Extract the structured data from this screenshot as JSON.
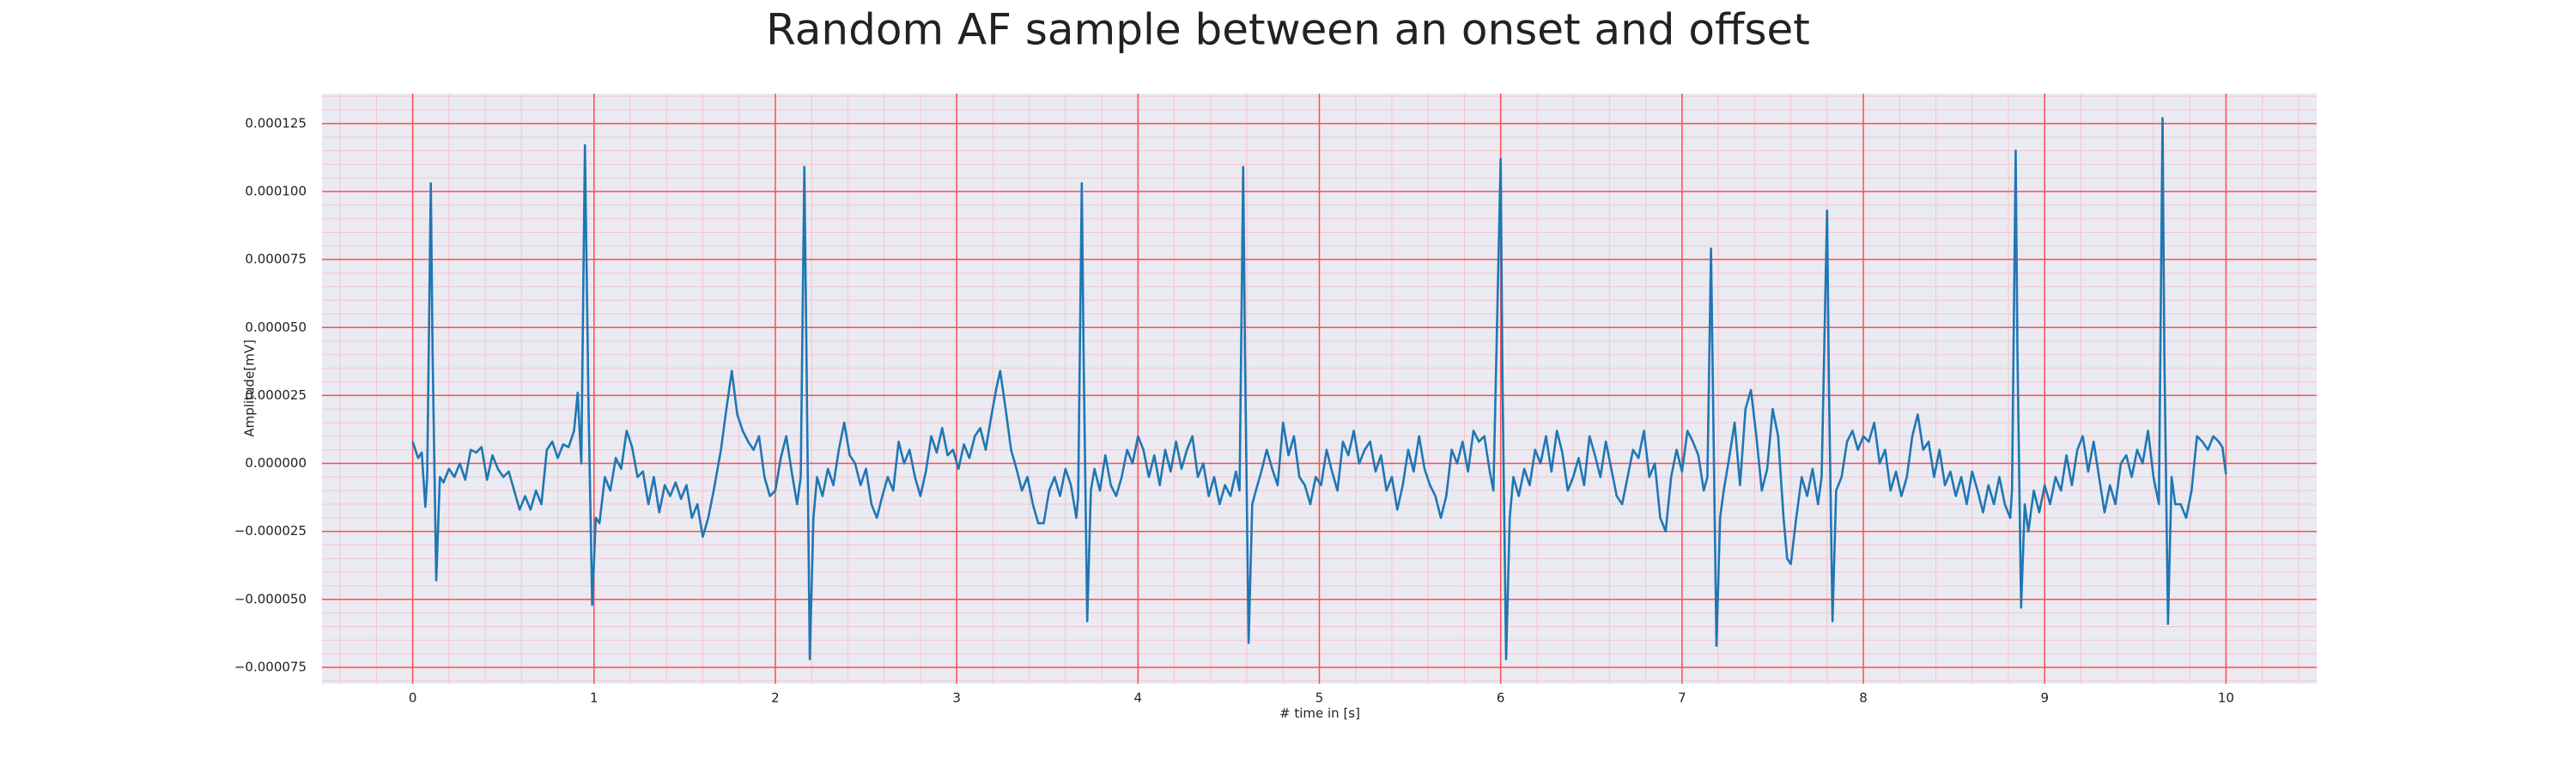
{
  "chart_data": {
    "type": "line",
    "title": "Random AF sample between an onset and offset",
    "xlabel": "# time in [s]",
    "ylabel": "Amplitude[mV]",
    "xlim": [
      -0.5,
      10.5
    ],
    "ylim": [
      -8.1e-05,
      0.000136
    ],
    "xticks": [
      0,
      1,
      2,
      3,
      4,
      5,
      6,
      7,
      8,
      9,
      10
    ],
    "yticks": [
      {
        "value": -7.5e-05,
        "label": "−0.000075"
      },
      {
        "value": -5e-05,
        "label": "−0.000050"
      },
      {
        "value": -2.5e-05,
        "label": "−0.000025"
      },
      {
        "value": 0,
        "label": "0.000000"
      },
      {
        "value": 2.5e-05,
        "label": "0.000025"
      },
      {
        "value": 5e-05,
        "label": "0.000050"
      },
      {
        "value": 7.5e-05,
        "label": "0.000075"
      },
      {
        "value": 0.0001,
        "label": "0.000100"
      },
      {
        "value": 0.000125,
        "label": "0.000125"
      }
    ],
    "grid": true,
    "minor_grid": true,
    "background": "#eaeaf2",
    "grid_color": "#ff4d4d",
    "minor_grid_color": "#f7c4cc",
    "x": [
      0.0,
      0.03,
      0.05,
      0.07,
      0.08,
      0.1,
      0.11,
      0.13,
      0.15,
      0.17,
      0.2,
      0.23,
      0.26,
      0.29,
      0.32,
      0.35,
      0.38,
      0.41,
      0.44,
      0.47,
      0.5,
      0.53,
      0.56,
      0.59,
      0.62,
      0.65,
      0.68,
      0.71,
      0.74,
      0.77,
      0.8,
      0.83,
      0.86,
      0.89,
      0.91,
      0.93,
      0.95,
      0.97,
      0.99,
      1.01,
      1.03,
      1.06,
      1.09,
      1.12,
      1.15,
      1.18,
      1.21,
      1.24,
      1.27,
      1.3,
      1.33,
      1.36,
      1.39,
      1.42,
      1.45,
      1.48,
      1.51,
      1.54,
      1.57,
      1.6,
      1.63,
      1.66,
      1.7,
      1.73,
      1.76,
      1.79,
      1.82,
      1.85,
      1.88,
      1.91,
      1.94,
      1.97,
      2.0,
      2.03,
      2.06,
      2.09,
      2.12,
      2.14,
      2.16,
      2.17,
      2.19,
      2.21,
      2.23,
      2.26,
      2.29,
      2.32,
      2.35,
      2.38,
      2.41,
      2.44,
      2.47,
      2.5,
      2.53,
      2.56,
      2.59,
      2.62,
      2.65,
      2.68,
      2.71,
      2.74,
      2.77,
      2.8,
      2.83,
      2.86,
      2.89,
      2.92,
      2.95,
      2.98,
      3.01,
      3.04,
      3.07,
      3.1,
      3.13,
      3.16,
      3.19,
      3.22,
      3.24,
      3.27,
      3.3,
      3.33,
      3.36,
      3.39,
      3.42,
      3.45,
      3.48,
      3.51,
      3.54,
      3.57,
      3.6,
      3.63,
      3.66,
      3.67,
      3.69,
      3.7,
      3.72,
      3.74,
      3.76,
      3.79,
      3.82,
      3.85,
      3.88,
      3.91,
      3.94,
      3.97,
      4.0,
      4.03,
      4.06,
      4.09,
      4.12,
      4.15,
      4.18,
      4.21,
      4.24,
      4.27,
      4.3,
      4.33,
      4.36,
      4.39,
      4.42,
      4.45,
      4.48,
      4.51,
      4.54,
      4.56,
      4.58,
      4.59,
      4.61,
      4.63,
      4.65,
      4.68,
      4.71,
      4.74,
      4.77,
      4.8,
      4.83,
      4.86,
      4.89,
      4.92,
      4.95,
      4.98,
      5.01,
      5.04,
      5.07,
      5.1,
      5.13,
      5.16,
      5.19,
      5.22,
      5.25,
      5.28,
      5.31,
      5.34,
      5.37,
      5.4,
      5.43,
      5.46,
      5.49,
      5.52,
      5.55,
      5.58,
      5.61,
      5.64,
      5.67,
      5.7,
      5.73,
      5.76,
      5.79,
      5.82,
      5.85,
      5.88,
      5.91,
      5.94,
      5.96,
      6.0,
      6.01,
      6.03,
      6.05,
      6.07,
      6.1,
      6.13,
      6.16,
      6.19,
      6.22,
      6.25,
      6.28,
      6.31,
      6.34,
      6.37,
      6.4,
      6.43,
      6.46,
      6.49,
      6.52,
      6.55,
      6.58,
      6.61,
      6.64,
      6.67,
      6.7,
      6.73,
      6.76,
      6.79,
      6.82,
      6.85,
      6.88,
      6.91,
      6.94,
      6.97,
      7.0,
      7.03,
      7.06,
      7.09,
      7.12,
      7.14,
      7.16,
      7.17,
      7.19,
      7.21,
      7.23,
      7.26,
      7.29,
      7.32,
      7.35,
      7.38,
      7.41,
      7.44,
      7.47,
      7.5,
      7.53,
      7.56,
      7.58,
      7.6,
      7.63,
      7.66,
      7.69,
      7.72,
      7.75,
      7.77,
      7.8,
      7.81,
      7.83,
      7.85,
      7.88,
      7.91,
      7.94,
      7.97,
      8.0,
      8.03,
      8.06,
      8.09,
      8.12,
      8.15,
      8.18,
      8.21,
      8.24,
      8.27,
      8.3,
      8.33,
      8.36,
      8.39,
      8.42,
      8.45,
      8.48,
      8.51,
      8.54,
      8.57,
      8.6,
      8.63,
      8.66,
      8.69,
      8.72,
      8.75,
      8.78,
      8.81,
      8.82,
      8.84,
      8.85,
      8.87,
      8.89,
      8.91,
      8.94,
      8.97,
      9.0,
      9.03,
      9.06,
      9.09,
      9.12,
      9.15,
      9.18,
      9.21,
      9.24,
      9.27,
      9.3,
      9.33,
      9.36,
      9.39,
      9.42,
      9.45,
      9.48,
      9.51,
      9.54,
      9.57,
      9.6,
      9.63,
      9.65,
      9.66,
      9.68,
      9.7,
      9.72,
      9.75,
      9.78,
      9.81,
      9.84,
      9.87,
      9.9,
      9.93,
      9.96,
      9.98,
      10.0
    ],
    "series": [
      {
        "color": "#1f77b4",
        "values": [
          8e-06,
          2e-06,
          4e-06,
          -1.6e-05,
          -5e-06,
          0.000103,
          4e-05,
          -4.3e-05,
          -5e-06,
          -7e-06,
          -2e-06,
          -5e-06,
          0,
          -6e-06,
          5e-06,
          4e-06,
          6e-06,
          -6e-06,
          3e-06,
          -2e-06,
          -5e-06,
          -3e-06,
          -1e-05,
          -1.7e-05,
          -1.2e-05,
          -1.7e-05,
          -1e-05,
          -1.5e-05,
          5e-06,
          8e-06,
          2e-06,
          7e-06,
          6e-06,
          1.2e-05,
          2.6e-05,
          0,
          0.000117,
          2e-05,
          -5.2e-05,
          -2e-05,
          -2.2e-05,
          -5e-06,
          -1e-05,
          2e-06,
          -2e-06,
          1.2e-05,
          6e-06,
          -5e-06,
          -3e-06,
          -1.5e-05,
          -5e-06,
          -1.8e-05,
          -8e-06,
          -1.2e-05,
          -7e-06,
          -1.3e-05,
          -8e-06,
          -2e-05,
          -1.5e-05,
          -2.7e-05,
          -2e-05,
          -1e-05,
          5e-06,
          2e-05,
          3.4e-05,
          1.8e-05,
          1.2e-05,
          8e-06,
          5e-06,
          1e-05,
          -5e-06,
          -1.2e-05,
          -1e-05,
          2e-06,
          1e-05,
          -3e-06,
          -1.5e-05,
          -5e-06,
          0.000109,
          5e-05,
          -7.2e-05,
          -2e-05,
          -5e-06,
          -1.2e-05,
          -2e-06,
          -8e-06,
          5e-06,
          1.5e-05,
          3e-06,
          0,
          -8e-06,
          -2e-06,
          -1.5e-05,
          -2e-05,
          -1.2e-05,
          -5e-06,
          -1e-05,
          8e-06,
          0,
          5e-06,
          -5e-06,
          -1.2e-05,
          -3e-06,
          1e-05,
          4e-06,
          1.3e-05,
          3e-06,
          5e-06,
          -2e-06,
          7e-06,
          2e-06,
          1e-05,
          1.3e-05,
          5e-06,
          1.7e-05,
          2.8e-05,
          3.4e-05,
          2e-05,
          5e-06,
          -2e-06,
          -1e-05,
          -5e-06,
          -1.5e-05,
          -2.2e-05,
          -2.2e-05,
          -1e-05,
          -5e-06,
          -1.2e-05,
          -2e-06,
          -8e-06,
          -2e-05,
          -1.2e-05,
          0.000103,
          4e-05,
          -5.8e-05,
          -1e-05,
          -2e-06,
          -1e-05,
          3e-06,
          -8e-06,
          -1.2e-05,
          -5e-06,
          5e-06,
          0,
          1e-05,
          5e-06,
          -5e-06,
          3e-06,
          -8e-06,
          5e-06,
          -3e-06,
          8e-06,
          -2e-06,
          5e-06,
          1e-05,
          -5e-06,
          0,
          -1.2e-05,
          -5e-06,
          -1.5e-05,
          -8e-06,
          -1.2e-05,
          -3e-06,
          -1e-05,
          0.000109,
          4e-05,
          -6.6e-05,
          -1.5e-05,
          -1e-05,
          -3e-06,
          5e-06,
          -2e-06,
          -8e-06,
          1.5e-05,
          3e-06,
          1e-05,
          -5e-06,
          -8e-06,
          -1.5e-05,
          -5e-06,
          -8e-06,
          5e-06,
          -3e-06,
          -1e-05,
          8e-06,
          3e-06,
          1.2e-05,
          0,
          5e-06,
          8e-06,
          -3e-06,
          3e-06,
          -1e-05,
          -5e-06,
          -1.7e-05,
          -8e-06,
          5e-06,
          -3e-06,
          1e-05,
          -2e-06,
          -8e-06,
          -1.2e-05,
          -2e-05,
          -1.2e-05,
          5e-06,
          0,
          8e-06,
          -3e-06,
          1.2e-05,
          8e-06,
          1e-05,
          -3e-06,
          -1e-05,
          0.000112,
          3e-05,
          -7.2e-05,
          -2e-05,
          -5e-06,
          -1.2e-05,
          -2e-06,
          -8e-06,
          5e-06,
          0,
          1e-05,
          -3e-06,
          1.2e-05,
          4e-06,
          -1e-05,
          -5e-06,
          2e-06,
          -8e-06,
          1e-05,
          3e-06,
          -5e-06,
          8e-06,
          -2e-06,
          -1.2e-05,
          -1.5e-05,
          -5e-06,
          5e-06,
          2e-06,
          1.2e-05,
          -5e-06,
          0,
          -2e-05,
          -2.5e-05,
          -5e-06,
          5e-06,
          -3e-06,
          1.2e-05,
          8e-06,
          3e-06,
          -1e-05,
          -5e-06,
          7.9e-05,
          3e-05,
          -6.7e-05,
          -2e-05,
          -1e-05,
          2e-06,
          1.5e-05,
          -8e-06,
          2e-05,
          2.7e-05,
          1e-05,
          -1e-05,
          -2e-06,
          2e-05,
          1e-05,
          -2e-05,
          -3.5e-05,
          -3.7e-05,
          -2e-05,
          -5e-06,
          -1.2e-05,
          -2e-06,
          -1.5e-05,
          -5e-06,
          9.3e-05,
          3e-05,
          -5.8e-05,
          -1e-05,
          -5e-06,
          8e-06,
          1.2e-05,
          5e-06,
          1e-05,
          8e-06,
          1.5e-05,
          0,
          5e-06,
          -1e-05,
          -3e-06,
          -1.2e-05,
          -5e-06,
          1e-05,
          1.8e-05,
          5e-06,
          8e-06,
          -5e-06,
          5e-06,
          -8e-06,
          -3e-06,
          -1.2e-05,
          -5e-06,
          -1.5e-05,
          -3e-06,
          -1e-05,
          -1.8e-05,
          -8e-06,
          -1.5e-05,
          -5e-06,
          -1.5e-05,
          -2e-05,
          -1e-05,
          0.000115,
          4e-05,
          -5.3e-05,
          -1.5e-05,
          -2.5e-05,
          -1e-05,
          -1.8e-05,
          -8e-06,
          -1.5e-05,
          -5e-06,
          -1e-05,
          3e-06,
          -8e-06,
          5e-06,
          1e-05,
          -3e-06,
          8e-06,
          -5e-06,
          -1.8e-05,
          -8e-06,
          -1.5e-05,
          0,
          3e-06,
          -5e-06,
          5e-06,
          0,
          1.2e-05,
          -5e-06,
          -1.5e-05,
          0.000127,
          4e-05,
          -5.9e-05,
          -5e-06,
          -1.5e-05,
          -1.5e-05,
          -2e-05,
          -1e-05,
          1e-05,
          8e-06,
          5e-06,
          1e-05,
          8e-06,
          6e-06,
          -4e-06
        ]
      }
    ]
  }
}
